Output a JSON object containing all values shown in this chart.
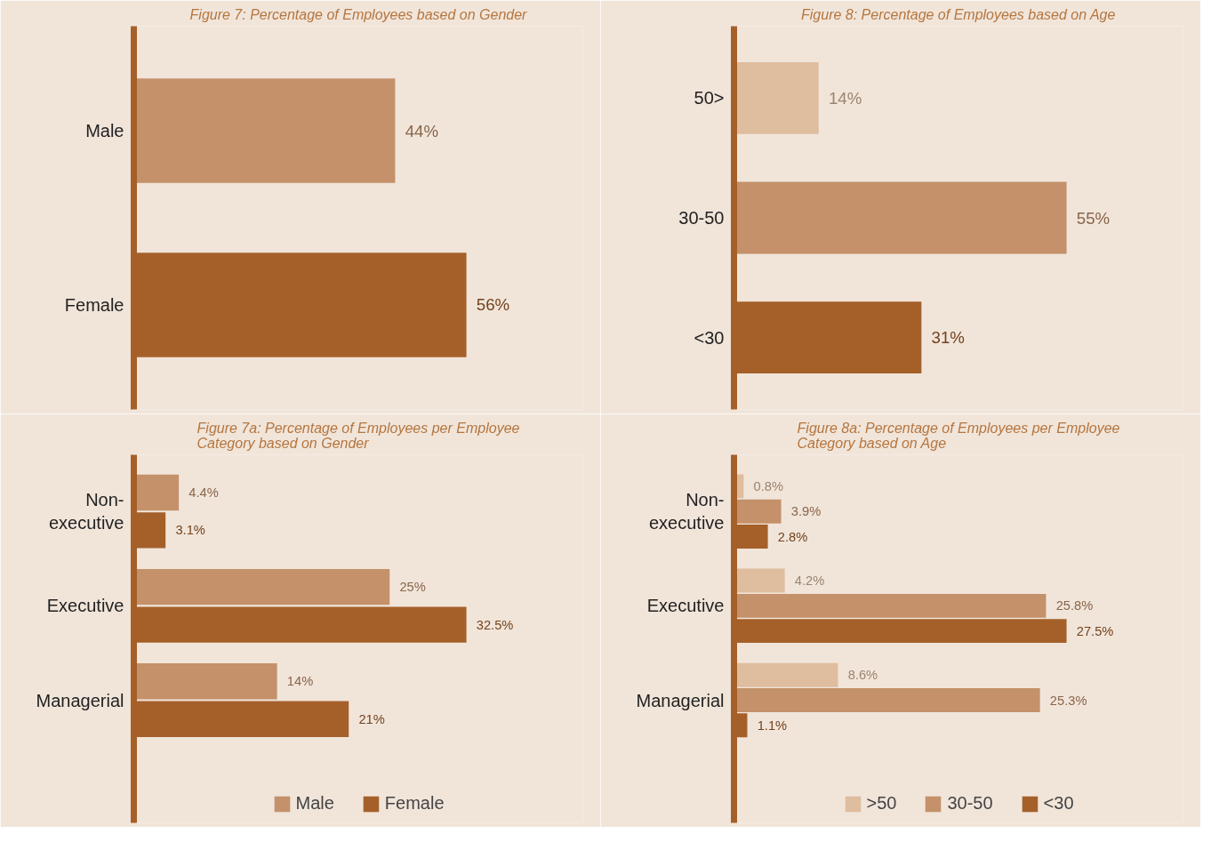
{
  "chart_data": [
    {
      "type": "bar",
      "orientation": "horizontal",
      "title": "Figure 7: Percentage of Employees based on Gender",
      "categories": [
        "Male",
        "Female"
      ],
      "values": [
        44,
        56
      ],
      "value_labels": [
        "44%",
        "56%"
      ],
      "colors": [
        "#c4916a",
        "#a5602a"
      ],
      "tick_labels": "y",
      "grid": false,
      "legend": false
    },
    {
      "type": "bar",
      "orientation": "horizontal",
      "title": "Figure 8: Percentage of Employees based on Age",
      "categories": [
        "50>",
        "30-50",
        "<30"
      ],
      "values": [
        14,
        55,
        31
      ],
      "value_labels": [
        "14%",
        "55%",
        "31%"
      ],
      "colors": [
        "#dfbd9f",
        "#c4916a",
        "#a5602a"
      ],
      "tick_labels": "y",
      "grid": false,
      "legend": false
    },
    {
      "type": "bar",
      "orientation": "horizontal",
      "title": "Figure 7a: Percentage of Employees per Employee Category based on Gender",
      "categories": [
        "Non-executive",
        "Executive",
        "Managerial"
      ],
      "series": [
        {
          "name": "Male",
          "color": "#c4916a",
          "values": [
            4.4,
            25,
            14
          ],
          "value_labels": [
            "4.4%",
            "25%",
            "14%"
          ]
        },
        {
          "name": "Female",
          "color": "#a5602a",
          "values": [
            3.1,
            32.5,
            21
          ],
          "value_labels": [
            "3.1%",
            "32.5%",
            "21%"
          ]
        }
      ],
      "tick_labels": "y",
      "grid": false,
      "legend": "bottom"
    },
    {
      "type": "bar",
      "orientation": "horizontal",
      "title": "Figure 8a: Percentage of Employees per Employee Category based on Age",
      "categories": [
        "Non-executive",
        "Executive",
        "Managerial"
      ],
      "series": [
        {
          "name": ">50",
          "color": "#dfbd9f",
          "values": [
            0.8,
            4.2,
            8.6
          ],
          "value_labels": [
            "0.8%",
            "4.2%",
            "8.6%"
          ]
        },
        {
          "name": "30-50",
          "color": "#c4916a",
          "values": [
            3.9,
            25.8,
            25.3
          ],
          "value_labels": [
            "3.9%",
            "25.8%",
            "25.3%"
          ]
        },
        {
          "name": "<30",
          "color": "#a5602a",
          "values": [
            2.8,
            27.5,
            1.1
          ],
          "value_labels": [
            "2.8%",
            "27.5%",
            "1.1%"
          ]
        }
      ],
      "tick_labels": "y",
      "grid": false,
      "legend": "bottom"
    }
  ]
}
